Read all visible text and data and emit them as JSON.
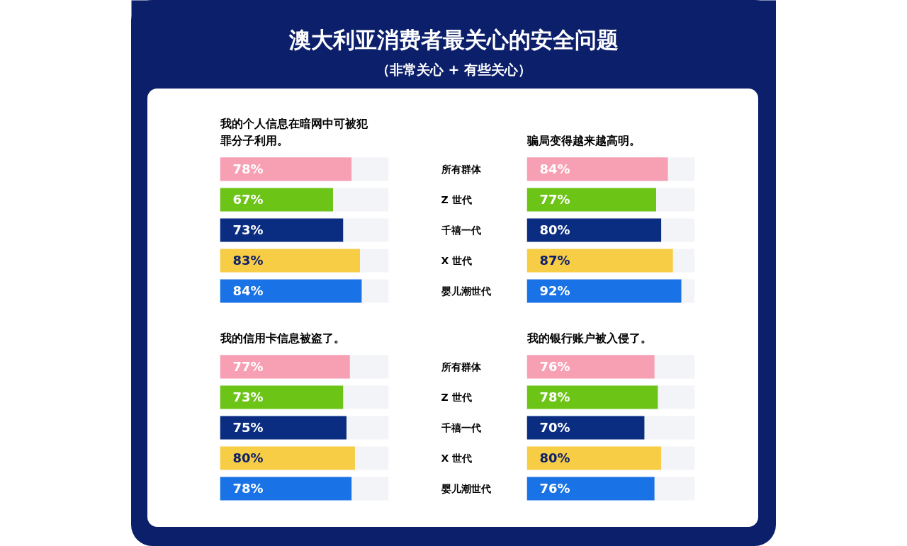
{
  "chart_data": [
    {
      "type": "other",
      "title": "澳大利亚消费者最关心的安全问题",
      "subtitle": "（非常关心 + 有些关心）"
    },
    {
      "type": "bar",
      "orientation": "horizontal",
      "title": "我的个人信息在暗网中可被犯罪分子利用。",
      "categories": [
        "所有群体",
        "Z 世代",
        "千禧一代",
        "X 世代",
        "婴儿潮世代"
      ],
      "values": [
        78,
        67,
        73,
        83,
        84
      ],
      "value_labels": [
        "78%",
        "67%",
        "73%",
        "83%",
        "84%"
      ],
      "colors": [
        "#f8a0b3",
        "#6cc417",
        "#0a2d82",
        "#f7cd45",
        "#1973e6"
      ],
      "xlim": [
        0,
        100
      ],
      "tick_labels": "y"
    },
    {
      "type": "bar",
      "orientation": "horizontal",
      "title": "骗局变得越来越高明。",
      "categories": [
        "所有群体",
        "Z 世代",
        "千禧一代",
        "X 世代",
        "婴儿潮世代"
      ],
      "values": [
        84,
        77,
        80,
        87,
        92
      ],
      "value_labels": [
        "84%",
        "77%",
        "80%",
        "87%",
        "92%"
      ],
      "colors": [
        "#f8a0b3",
        "#6cc417",
        "#0a2d82",
        "#f7cd45",
        "#1973e6"
      ],
      "xlim": [
        0,
        100
      ],
      "tick_labels": false
    },
    {
      "type": "bar",
      "orientation": "horizontal",
      "title": "我的信用卡信息被盗了。",
      "categories": [
        "所有群体",
        "Z 世代",
        "千禧一代",
        "X 世代",
        "婴儿潮世代"
      ],
      "values": [
        77,
        73,
        75,
        80,
        78
      ],
      "value_labels": [
        "77%",
        "73%",
        "75%",
        "80%",
        "78%"
      ],
      "colors": [
        "#f8a0b3",
        "#6cc417",
        "#0a2d82",
        "#f7cd45",
        "#1973e6"
      ],
      "xlim": [
        0,
        100
      ],
      "tick_labels": "y"
    },
    {
      "type": "bar",
      "orientation": "horizontal",
      "title": "我的银行账户被入侵了。",
      "categories": [
        "所有群体",
        "Z 世代",
        "千禧一代",
        "X 世代",
        "婴儿潮世代"
      ],
      "values": [
        76,
        78,
        70,
        80,
        76
      ],
      "value_labels": [
        "76%",
        "78%",
        "70%",
        "80%",
        "76%"
      ],
      "colors": [
        "#f8a0b3",
        "#6cc417",
        "#0a2d82",
        "#f7cd45",
        "#1973e6"
      ],
      "xlim": [
        0,
        100
      ],
      "tick_labels": false
    }
  ]
}
